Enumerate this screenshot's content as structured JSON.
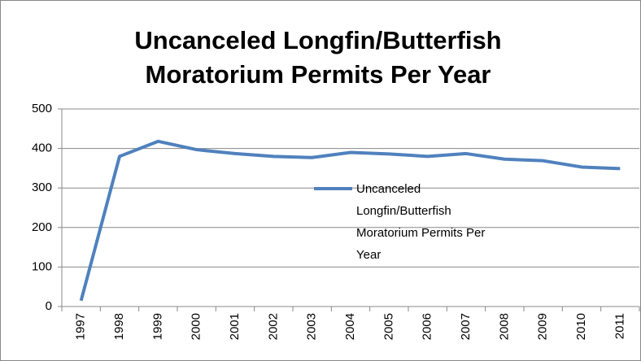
{
  "chart_data": {
    "type": "line",
    "title": "Uncanceled Longfin/Butterfish Moratorium Permits Per Year",
    "categories": [
      "1997",
      "1998",
      "1999",
      "2000",
      "2001",
      "2002",
      "2003",
      "2004",
      "2005",
      "2006",
      "2007",
      "2008",
      "2009",
      "2010",
      "2011"
    ],
    "series": [
      {
        "name": "Uncanceled Longfin/Butterfish Moratorium Permits Per Year",
        "color": "#4f81bd",
        "values": [
          15,
          380,
          418,
          397,
          387,
          380,
          377,
          390,
          386,
          380,
          387,
          373,
          369,
          353,
          349
        ]
      }
    ],
    "ylim": [
      0,
      500
    ],
    "yticks": [
      0,
      100,
      200,
      300,
      400,
      500
    ],
    "grid": true,
    "legend": "center"
  }
}
